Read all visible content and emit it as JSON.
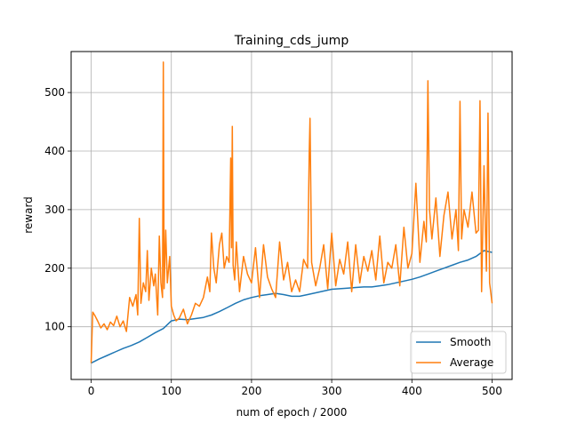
{
  "chart_data": {
    "type": "line",
    "title": "Training_cds_jump",
    "xlabel": "num of epoch / 2000",
    "ylabel": "reward",
    "xlim": [
      -25,
      525
    ],
    "ylim": [
      10,
      570
    ],
    "xticks": [
      0,
      100,
      200,
      300,
      400,
      500
    ],
    "yticks": [
      100,
      200,
      300,
      400,
      500
    ],
    "grid": true,
    "legend_position": "bottom-right",
    "series": [
      {
        "name": "Smooth",
        "color": "#1f77b4",
        "x": [
          0,
          10,
          20,
          30,
          40,
          50,
          60,
          70,
          80,
          90,
          100,
          110,
          120,
          130,
          140,
          150,
          160,
          170,
          180,
          190,
          200,
          210,
          220,
          230,
          240,
          250,
          260,
          270,
          280,
          290,
          300,
          310,
          320,
          330,
          340,
          350,
          360,
          370,
          380,
          390,
          400,
          410,
          420,
          430,
          440,
          450,
          460,
          470,
          480,
          490,
          500
        ],
        "values": [
          38,
          45,
          51,
          57,
          63,
          68,
          74,
          82,
          90,
          97,
          110,
          113,
          112,
          114,
          116,
          120,
          126,
          133,
          140,
          146,
          150,
          153,
          155,
          157,
          155,
          152,
          152,
          155,
          158,
          161,
          164,
          165,
          166,
          167,
          168,
          168,
          170,
          172,
          175,
          178,
          181,
          185,
          190,
          195,
          200,
          205,
          210,
          214,
          220,
          230,
          227
        ]
      },
      {
        "name": "Average",
        "color": "#ff7f0e",
        "x": [
          0,
          2,
          5,
          8,
          12,
          16,
          20,
          24,
          28,
          32,
          36,
          40,
          44,
          48,
          52,
          56,
          58,
          60,
          62,
          65,
          68,
          70,
          72,
          75,
          78,
          80,
          83,
          85,
          87,
          89,
          90,
          91,
          93,
          95,
          98,
          100,
          103,
          106,
          110,
          115,
          120,
          125,
          130,
          135,
          140,
          145,
          148,
          150,
          153,
          156,
          160,
          163,
          166,
          169,
          172,
          174,
          175,
          176,
          177,
          179,
          181,
          185,
          190,
          195,
          200,
          205,
          210,
          215,
          220,
          225,
          230,
          235,
          240,
          245,
          250,
          255,
          260,
          265,
          270,
          272,
          273,
          275,
          280,
          285,
          290,
          295,
          300,
          305,
          310,
          315,
          320,
          325,
          330,
          335,
          340,
          345,
          350,
          355,
          360,
          365,
          370,
          375,
          380,
          385,
          390,
          395,
          400,
          405,
          410,
          415,
          418,
          420,
          422,
          425,
          430,
          435,
          440,
          445,
          450,
          455,
          458,
          460,
          462,
          465,
          470,
          475,
          480,
          483,
          485,
          487,
          490,
          493,
          495,
          497,
          500
        ],
        "values": [
          38,
          125,
          118,
          110,
          98,
          105,
          95,
          108,
          102,
          118,
          100,
          110,
          92,
          150,
          135,
          155,
          120,
          285,
          140,
          175,
          160,
          230,
          145,
          200,
          170,
          190,
          120,
          255,
          175,
          150,
          552,
          165,
          265,
          175,
          220,
          135,
          120,
          110,
          115,
          130,
          105,
          120,
          140,
          135,
          150,
          185,
          160,
          260,
          200,
          175,
          240,
          260,
          200,
          220,
          210,
          388,
          235,
          442,
          205,
          180,
          245,
          160,
          220,
          190,
          175,
          235,
          150,
          240,
          185,
          165,
          150,
          245,
          180,
          210,
          160,
          180,
          160,
          215,
          200,
          395,
          456,
          210,
          170,
          200,
          240,
          165,
          260,
          170,
          215,
          190,
          245,
          160,
          240,
          175,
          220,
          195,
          230,
          180,
          255,
          175,
          210,
          200,
          240,
          170,
          270,
          200,
          225,
          345,
          210,
          280,
          245,
          520,
          300,
          250,
          320,
          220,
          290,
          330,
          250,
          300,
          230,
          485,
          250,
          300,
          270,
          330,
          260,
          265,
          486,
          160,
          375,
          195,
          465,
          175,
          140
        ]
      }
    ]
  }
}
